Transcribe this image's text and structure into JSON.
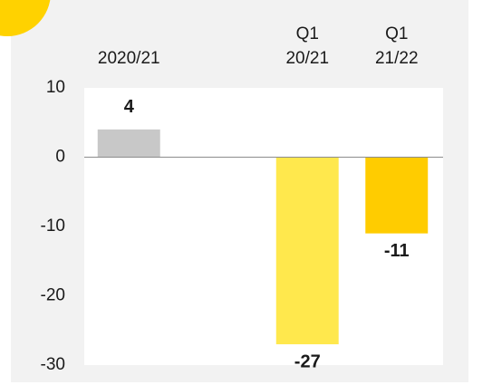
{
  "chart_data": {
    "type": "bar",
    "categories": [
      "2020/21",
      null,
      "Q1\n20/21",
      "Q1\n21/22"
    ],
    "values": [
      4,
      null,
      -27,
      -11
    ],
    "value_labels": [
      "4",
      null,
      "-27",
      "-11"
    ],
    "colors": [
      "#c8c8c8",
      null,
      "#ffe84d",
      "#ffcc00"
    ],
    "ylim": [
      -30,
      10
    ],
    "yticks": [
      -30,
      -20,
      -10,
      0,
      10
    ],
    "zero_line": true,
    "grid": false
  }
}
